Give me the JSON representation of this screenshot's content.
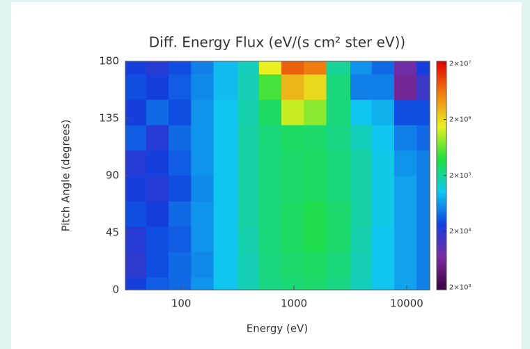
{
  "chart_data": {
    "type": "contour",
    "title": "Diff. Energy Flux (eV/(s cm² ster eV))",
    "x_label": "Energy (eV)",
    "y_label": "Pitch Angle (degrees)",
    "x_log": true,
    "xlim": [
      32,
      16000
    ],
    "ylim": [
      0,
      180
    ],
    "xticks": [
      100,
      1000,
      10000
    ],
    "yticks": [
      0,
      45,
      90,
      135,
      180
    ],
    "x": [
      40,
      60,
      100,
      150,
      250,
      400,
      600,
      1000,
      1500,
      2500,
      4000,
      6000,
      10000,
      15000
    ],
    "y": [
      0,
      20,
      40,
      60,
      80,
      100,
      120,
      140,
      160,
      180
    ],
    "z": [
      [
        25000,
        35000,
        40000,
        60000,
        100000,
        160000,
        230000,
        260000,
        280000,
        230000,
        150000,
        100000,
        70000,
        50000
      ],
      [
        18000,
        30000,
        40000,
        55000,
        100000,
        160000,
        240000,
        280000,
        300000,
        250000,
        160000,
        100000,
        70000,
        50000
      ],
      [
        20000,
        30000,
        35000,
        60000,
        100000,
        170000,
        250000,
        300000,
        350000,
        280000,
        170000,
        100000,
        70000,
        50000
      ],
      [
        30000,
        25000,
        40000,
        60000,
        100000,
        180000,
        250000,
        300000,
        350000,
        280000,
        180000,
        110000,
        70000,
        50000
      ],
      [
        25000,
        20000,
        30000,
        55000,
        100000,
        180000,
        250000,
        280000,
        300000,
        250000,
        180000,
        110000,
        70000,
        50000
      ],
      [
        20000,
        25000,
        35000,
        60000,
        100000,
        180000,
        250000,
        280000,
        300000,
        250000,
        180000,
        110000,
        60000,
        50000
      ],
      [
        35000,
        20000,
        40000,
        60000,
        100000,
        180000,
        250000,
        300000,
        280000,
        230000,
        150000,
        100000,
        50000,
        40000
      ],
      [
        25000,
        40000,
        30000,
        60000,
        100000,
        170000,
        300000,
        1200000,
        800000,
        250000,
        100000,
        80000,
        30000,
        30000
      ],
      [
        30000,
        25000,
        35000,
        55000,
        90000,
        160000,
        500000,
        3000000,
        2000000,
        250000,
        50000,
        50000,
        6000,
        15000
      ],
      [
        25000,
        20000,
        30000,
        50000,
        90000,
        150000,
        1500000,
        8000000,
        6000000,
        200000,
        60000,
        40000,
        8000,
        25000
      ]
    ],
    "clim": [
      1800,
      22000000
    ],
    "c_log": true,
    "cticks": [
      {
        "value": 2000,
        "label": "2×10³"
      },
      {
        "value": 20000,
        "label": "2×10⁴"
      },
      {
        "value": 200000,
        "label": "2×10⁵"
      },
      {
        "value": 2000000,
        "label": "2×10⁶"
      },
      {
        "value": 20000000,
        "label": "2×10⁷"
      }
    ],
    "colorscale": [
      "#3a0040",
      "#7a2aa0",
      "#1040e0",
      "#10c8f0",
      "#20e040",
      "#e8f020",
      "#f08010",
      "#e00000"
    ]
  }
}
